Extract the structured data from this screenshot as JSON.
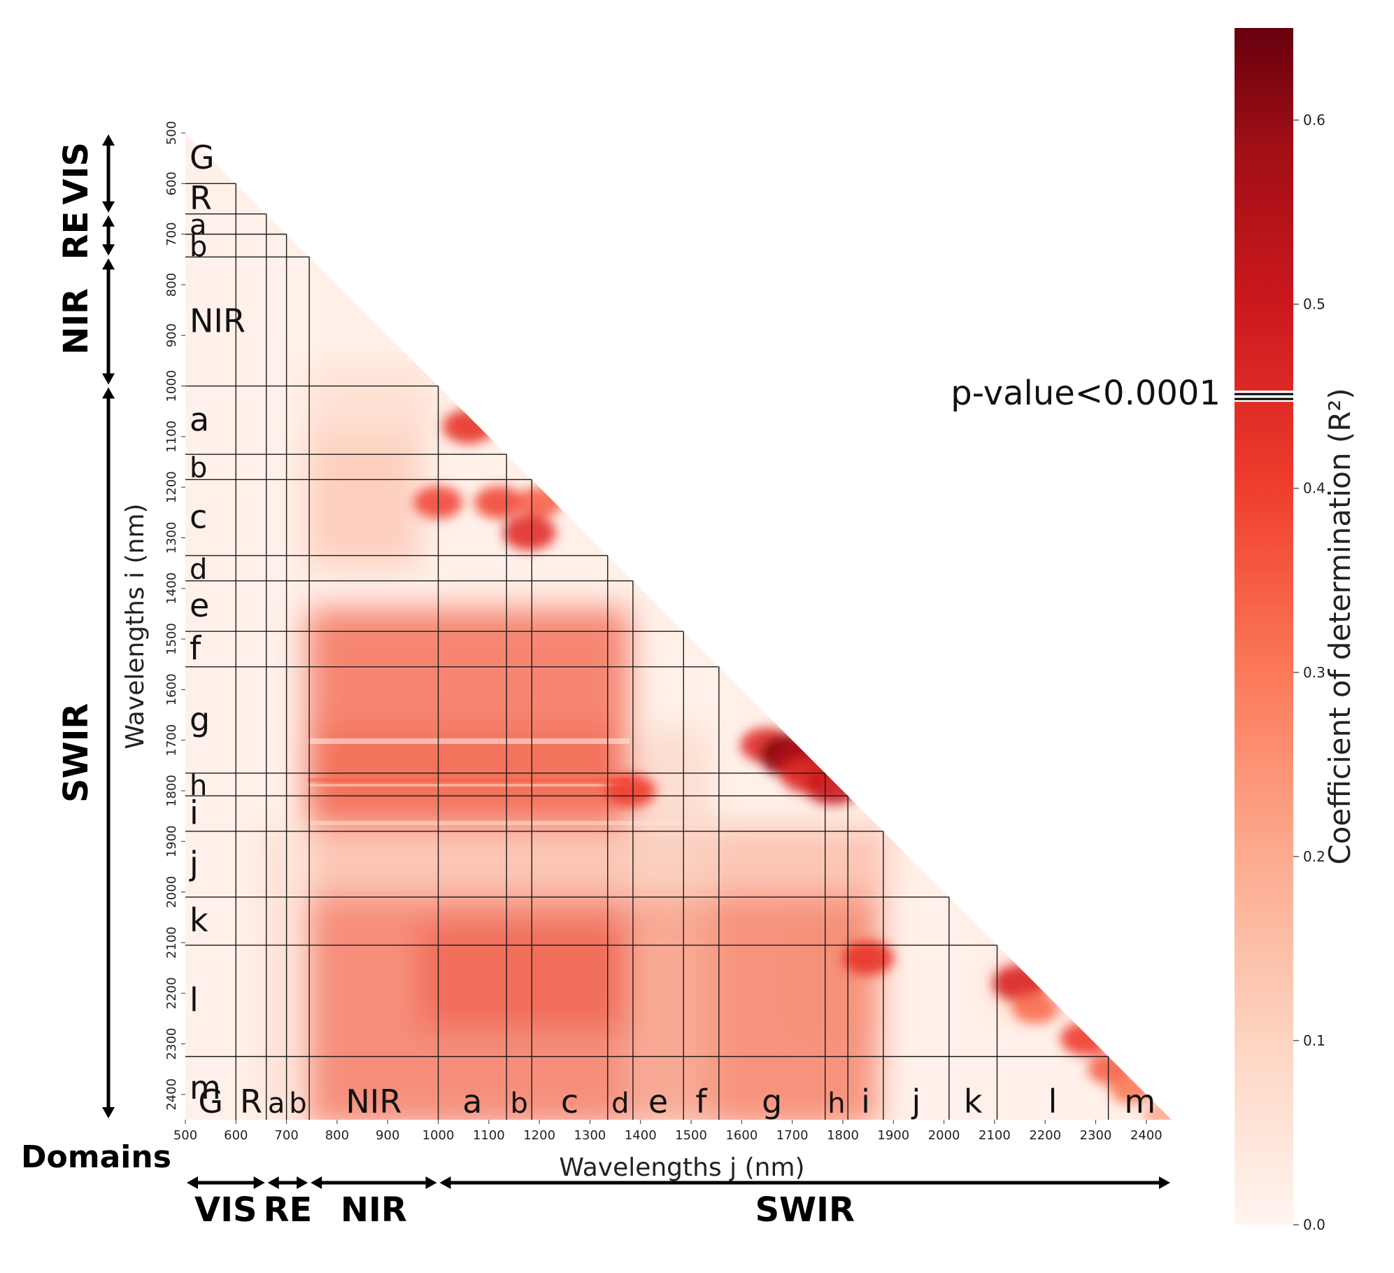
{
  "chart_data": {
    "type": "heatmap",
    "xlabel": "Wavelengths j (nm)",
    "ylabel": "Wavelengths i (nm)",
    "x_range": [
      500,
      2450
    ],
    "y_range": [
      500,
      2450
    ],
    "x_ticks": [
      500,
      600,
      700,
      800,
      900,
      1000,
      1100,
      1200,
      1300,
      1400,
      1500,
      1600,
      1700,
      1800,
      1900,
      2000,
      2100,
      2200,
      2300,
      2400
    ],
    "y_ticks": [
      500,
      600,
      700,
      800,
      900,
      1000,
      1100,
      1200,
      1300,
      1400,
      1500,
      1600,
      1700,
      1800,
      1900,
      2000,
      2100,
      2200,
      2300,
      2400
    ],
    "colorbar": {
      "label": "Coefficient of determination (R²)",
      "min": 0.0,
      "max": 0.65,
      "ticks": [
        0.0,
        0.1,
        0.2,
        0.3,
        0.4,
        0.5,
        0.6
      ],
      "tick_labels": [
        "0.0",
        "0.1",
        "0.2",
        "0.3",
        "0.4",
        "0.5",
        "0.6"
      ],
      "threshold": 0.45,
      "threshold_label": "p-value<0.0001",
      "colors": [
        "#fff5f0",
        "#fcbba1",
        "#fb6a4a",
        "#cb181d",
        "#67000d"
      ]
    },
    "sub_domains": [
      {
        "label": "G",
        "start": 500,
        "end": 600
      },
      {
        "label": "R",
        "start": 600,
        "end": 660
      },
      {
        "label": "a",
        "start": 660,
        "end": 700
      },
      {
        "label": "b",
        "start": 700,
        "end": 745
      },
      {
        "label": "NIR",
        "start": 745,
        "end": 1000
      },
      {
        "label": "a",
        "start": 1000,
        "end": 1135
      },
      {
        "label": "b",
        "start": 1135,
        "end": 1185
      },
      {
        "label": "c",
        "start": 1185,
        "end": 1335
      },
      {
        "label": "d",
        "start": 1335,
        "end": 1385
      },
      {
        "label": "e",
        "start": 1385,
        "end": 1485
      },
      {
        "label": "f",
        "start": 1485,
        "end": 1555
      },
      {
        "label": "g",
        "start": 1555,
        "end": 1765
      },
      {
        "label": "h",
        "start": 1765,
        "end": 1810
      },
      {
        "label": "i",
        "start": 1810,
        "end": 1880
      },
      {
        "label": "j",
        "start": 1880,
        "end": 2010
      },
      {
        "label": "k",
        "start": 2010,
        "end": 2105
      },
      {
        "label": "l",
        "start": 2105,
        "end": 2325
      },
      {
        "label": "m",
        "start": 2325,
        "end": 2450
      }
    ],
    "domains": {
      "title": "Domains",
      "items": [
        {
          "label": "VIS",
          "start": 500,
          "end": 660
        },
        {
          "label": "RE",
          "start": 660,
          "end": 745
        },
        {
          "label": "NIR",
          "start": 745,
          "end": 1000
        },
        {
          "label": "SWIR",
          "start": 1000,
          "end": 2450
        }
      ]
    },
    "hotspots": [
      {
        "x": 1060,
        "y": 1080,
        "r2": 0.42
      },
      {
        "x": 1000,
        "y": 1230,
        "r2": 0.38
      },
      {
        "x": 1120,
        "y": 1230,
        "r2": 0.38
      },
      {
        "x": 1200,
        "y": 1230,
        "r2": 0.34
      },
      {
        "x": 1180,
        "y": 1290,
        "r2": 0.44
      },
      {
        "x": 1650,
        "y": 1710,
        "r2": 0.44
      },
      {
        "x": 1700,
        "y": 1730,
        "r2": 0.62
      },
      {
        "x": 1720,
        "y": 1740,
        "r2": 0.55
      },
      {
        "x": 1730,
        "y": 1770,
        "r2": 0.44
      },
      {
        "x": 1780,
        "y": 1790,
        "r2": 0.5
      },
      {
        "x": 1380,
        "y": 1800,
        "r2": 0.4
      },
      {
        "x": 1850,
        "y": 2130,
        "r2": 0.42
      },
      {
        "x": 2150,
        "y": 2180,
        "r2": 0.46
      },
      {
        "x": 2180,
        "y": 2230,
        "r2": 0.32
      },
      {
        "x": 2280,
        "y": 2290,
        "r2": 0.4
      },
      {
        "x": 2330,
        "y": 2350,
        "r2": 0.34
      },
      {
        "x": 2370,
        "y": 2390,
        "r2": 0.3
      },
      {
        "x": 2430,
        "y": 2440,
        "r2": 0.2
      }
    ]
  }
}
